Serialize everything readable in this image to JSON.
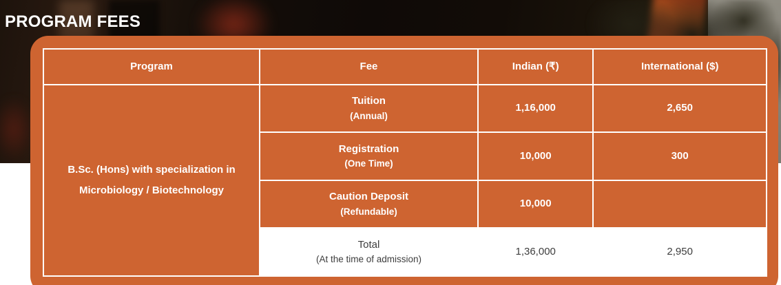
{
  "page": {
    "title": "PROGRAM FEES"
  },
  "colors": {
    "accent_orange": "#CE6431",
    "table_border": "#FFFFFF",
    "header_text": "#FFFFFF",
    "total_row_bg": "#FFFFFF",
    "total_row_text": "#3D3D3D"
  },
  "table": {
    "headers": {
      "program": "Program",
      "fee": "Fee",
      "indian": "Indian (₹)",
      "international": "International ($)"
    },
    "program": {
      "line1": "B.Sc. (Hons) with specialization in",
      "line2": "Microbiology / Biotechnology"
    },
    "rows": [
      {
        "fee": "Tuition",
        "fee_note": "(Annual)",
        "indian": "1,16,000",
        "international": "2,650"
      },
      {
        "fee": "Registration",
        "fee_note": "(One Time)",
        "indian": "10,000",
        "international": "300"
      },
      {
        "fee": "Caution Deposit",
        "fee_note": "(Refundable)",
        "indian": "10,000",
        "international": ""
      },
      {
        "fee": "Total",
        "fee_note": "(At the time of admission)",
        "indian": "1,36,000",
        "international": "2,950"
      }
    ]
  }
}
